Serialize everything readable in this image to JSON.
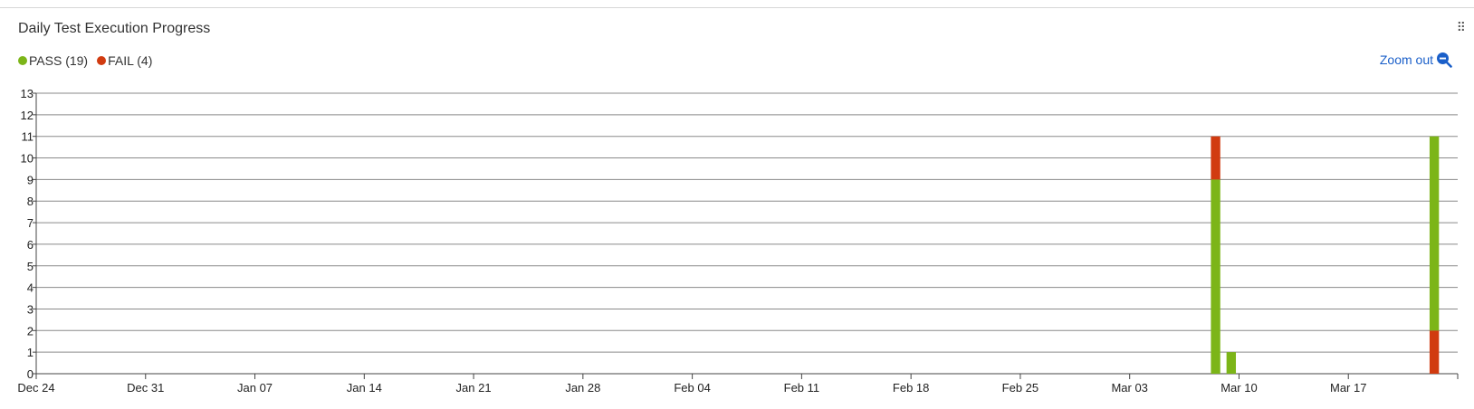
{
  "header": {
    "title": "Daily Test Execution Progress",
    "zoom_label": "Zoom out"
  },
  "legend": [
    {
      "label": "PASS (19)",
      "color": "#7cb518"
    },
    {
      "label": "FAIL (4)",
      "color": "#d13b10"
    }
  ],
  "chart_data": {
    "type": "bar",
    "stacked": true,
    "title": "Daily Test Execution Progress",
    "x_ticks": [
      "Dec 24",
      "Dec 31",
      "Jan 07",
      "Jan 14",
      "Jan 21",
      "Jan 28",
      "Feb 04",
      "Feb 11",
      "Feb 18",
      "Feb 25",
      "Mar 03",
      "Mar 10",
      "Mar 17"
    ],
    "x_range": [
      "Dec 24",
      "Mar 24"
    ],
    "ylim": [
      0,
      13
    ],
    "y_ticks": [
      0,
      1,
      2,
      3,
      4,
      5,
      6,
      7,
      8,
      9,
      10,
      11,
      12,
      13
    ],
    "grid": true,
    "legend_position": "top-left",
    "series": [
      {
        "name": "PASS",
        "color": "#7cb518",
        "points": [
          {
            "x": "Mar 08",
            "y": 9
          },
          {
            "x": "Mar 09",
            "y": 1
          },
          {
            "x": "Mar 22",
            "y": 9
          }
        ]
      },
      {
        "name": "FAIL",
        "color": "#d13b10",
        "points": [
          {
            "x": "Mar 08",
            "y": 2
          },
          {
            "x": "Mar 22",
            "y": 2
          }
        ]
      }
    ],
    "stack_order": {
      "Mar 08": [
        "PASS",
        "FAIL"
      ],
      "Mar 09": [
        "PASS"
      ],
      "Mar 22": [
        "FAIL",
        "PASS"
      ]
    }
  }
}
